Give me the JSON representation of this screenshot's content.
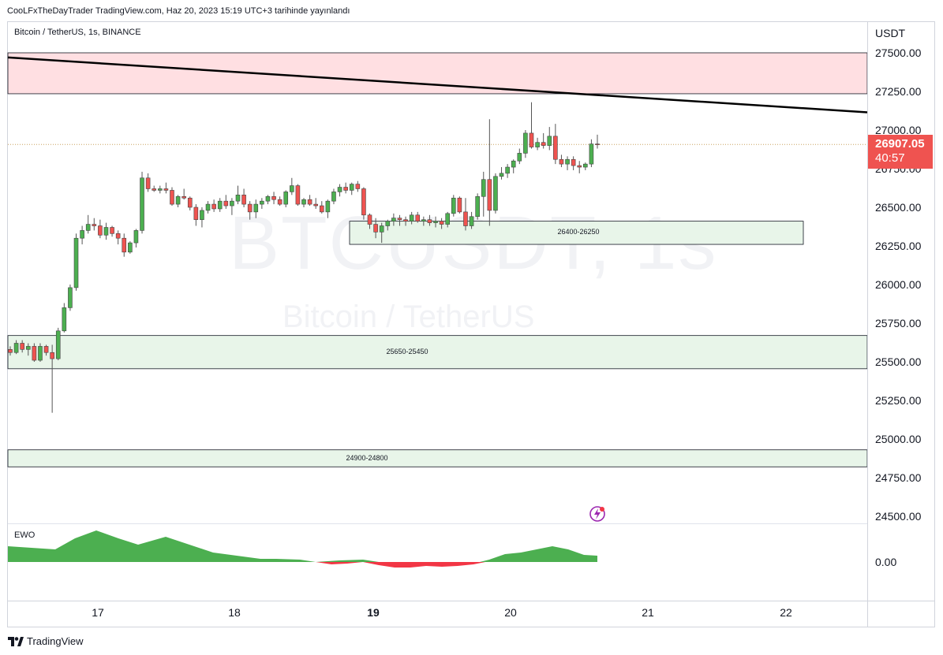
{
  "header": {
    "publisher": "CooLFxTheDayTrader TradingView.com, Haz 20, 2023 15:19 UTC+3 tarihinde yayınlandı",
    "symbol_title": "Bitcoin / TetherUS, 1s, BINANCE"
  },
  "watermark": {
    "symbol": "BTCUSDT, 1s",
    "name": "Bitcoin / TetherUS"
  },
  "price_axis": {
    "currency": "USDT",
    "ticks": [
      "27500.00",
      "27250.00",
      "27000.00",
      "26750.00",
      "26500.00",
      "26250.00",
      "26000.00",
      "25750.00",
      "25500.00",
      "25250.00",
      "25000.00",
      "24750.00",
      "24500.00"
    ],
    "current_price": "26907.05",
    "countdown": "40:57"
  },
  "time_axis": {
    "labels": [
      "17",
      "18",
      "19",
      "20",
      "21",
      "22"
    ],
    "bold_label": "19"
  },
  "zones": [
    {
      "label": "",
      "top": 27500,
      "bottom": 27235,
      "color": "#ffdfe2"
    },
    {
      "label": "26400-26250",
      "top": 26410,
      "bottom": 26260,
      "color": "#e8f5e9"
    },
    {
      "label": "25650-25450",
      "top": 25670,
      "bottom": 25455,
      "color": "#e8f5e9"
    },
    {
      "label": "24900-24800",
      "top": 24930,
      "bottom": 24820,
      "color": "#e8f5e9"
    }
  ],
  "trendline": {
    "from": 27470,
    "to": 27115
  },
  "indicator": {
    "name": "EWO",
    "zero_label": "0.00",
    "colors": {
      "positive": "#4caf50",
      "negative": "#f23645"
    }
  },
  "colors": {
    "up": "#4caf50",
    "down": "#ef5350",
    "label_bg": "#ef5350"
  },
  "footer": {
    "brand": "TradingView"
  },
  "chart_data": {
    "type": "candlestick",
    "title": "Bitcoin / TetherUS, 1s, BINANCE",
    "ylabel": "USDT",
    "ylim": [
      24400,
      27600
    ],
    "x_labels": [
      "17",
      "18",
      "19",
      "20",
      "21",
      "22"
    ],
    "candles": [
      [
        25580,
        25600,
        25540,
        25560
      ],
      [
        25560,
        25640,
        25550,
        25620
      ],
      [
        25620,
        25640,
        25560,
        25580
      ],
      [
        25580,
        25620,
        25540,
        25600
      ],
      [
        25600,
        25620,
        25500,
        25510
      ],
      [
        25510,
        25620,
        25500,
        25600
      ],
      [
        25600,
        25610,
        25540,
        25560
      ],
      [
        25560,
        25610,
        25170,
        25520
      ],
      [
        25520,
        25720,
        25510,
        25700
      ],
      [
        25700,
        25880,
        25690,
        25850
      ],
      [
        25850,
        26000,
        25830,
        25980
      ],
      [
        25980,
        26330,
        25960,
        26300
      ],
      [
        26300,
        26380,
        26260,
        26350
      ],
      [
        26350,
        26450,
        26330,
        26390
      ],
      [
        26390,
        26430,
        26350,
        26380
      ],
      [
        26380,
        26420,
        26300,
        26320
      ],
      [
        26320,
        26400,
        26290,
        26370
      ],
      [
        26370,
        26380,
        26310,
        26330
      ],
      [
        26330,
        26350,
        26260,
        26300
      ],
      [
        26300,
        26330,
        26180,
        26210
      ],
      [
        26210,
        26280,
        26200,
        26270
      ],
      [
        26270,
        26360,
        26240,
        26350
      ],
      [
        26350,
        26730,
        26330,
        26690
      ],
      [
        26690,
        26720,
        26600,
        26620
      ],
      [
        26620,
        26640,
        26600,
        26610
      ],
      [
        26610,
        26640,
        26590,
        26620
      ],
      [
        26620,
        26660,
        26590,
        26610
      ],
      [
        26610,
        26630,
        26510,
        26520
      ],
      [
        26520,
        26580,
        26500,
        26570
      ],
      [
        26570,
        26620,
        26550,
        26560
      ],
      [
        26560,
        26570,
        26480,
        26500
      ],
      [
        26500,
        26520,
        26380,
        26420
      ],
      [
        26420,
        26500,
        26370,
        26480
      ],
      [
        26480,
        26540,
        26460,
        26520
      ],
      [
        26520,
        26550,
        26470,
        26490
      ],
      [
        26490,
        26560,
        26470,
        26540
      ],
      [
        26540,
        26580,
        26490,
        26510
      ],
      [
        26510,
        26560,
        26450,
        26540
      ],
      [
        26540,
        26640,
        26520,
        26580
      ],
      [
        26580,
        26620,
        26500,
        26520
      ],
      [
        26520,
        26540,
        26420,
        26470
      ],
      [
        26470,
        26550,
        26430,
        26520
      ],
      [
        26520,
        26560,
        26490,
        26540
      ],
      [
        26540,
        26580,
        26520,
        26570
      ],
      [
        26570,
        26600,
        26520,
        26550
      ],
      [
        26550,
        26570,
        26510,
        26520
      ],
      [
        26520,
        26610,
        26500,
        26600
      ],
      [
        26600,
        26690,
        26580,
        26640
      ],
      [
        26640,
        26650,
        26510,
        26520
      ],
      [
        26520,
        26560,
        26500,
        26550
      ],
      [
        26550,
        26580,
        26510,
        26520
      ],
      [
        26520,
        26560,
        26490,
        26510
      ],
      [
        26510,
        26540,
        26460,
        26470
      ],
      [
        26470,
        26550,
        26430,
        26540
      ],
      [
        26540,
        26620,
        26520,
        26600
      ],
      [
        26600,
        26650,
        26570,
        26630
      ],
      [
        26630,
        26660,
        26590,
        26610
      ],
      [
        26610,
        26660,
        26580,
        26650
      ],
      [
        26650,
        26670,
        26600,
        26620
      ],
      [
        26620,
        26630,
        26420,
        26450
      ],
      [
        26450,
        26460,
        26360,
        26390
      ],
      [
        26390,
        26430,
        26300,
        26340
      ],
      [
        26340,
        26400,
        26270,
        26380
      ],
      [
        26380,
        26420,
        26350,
        26410
      ],
      [
        26410,
        26460,
        26380,
        26430
      ],
      [
        26430,
        26450,
        26380,
        26420
      ],
      [
        26420,
        26440,
        26380,
        26410
      ],
      [
        26410,
        26470,
        26390,
        26450
      ],
      [
        26450,
        26470,
        26400,
        26410
      ],
      [
        26410,
        26440,
        26380,
        26420
      ],
      [
        26420,
        26450,
        26380,
        26400
      ],
      [
        26400,
        26440,
        26370,
        26410
      ],
      [
        26410,
        26430,
        26360,
        26390
      ],
      [
        26390,
        26470,
        26370,
        26460
      ],
      [
        26460,
        26580,
        26440,
        26560
      ],
      [
        26560,
        26570,
        26460,
        26470
      ],
      [
        26470,
        26560,
        26350,
        26380
      ],
      [
        26380,
        26470,
        26360,
        26440
      ],
      [
        26440,
        26590,
        26420,
        26570
      ],
      [
        26570,
        26730,
        26440,
        26680
      ],
      [
        26680,
        27070,
        26380,
        26480
      ],
      [
        26480,
        26720,
        26460,
        26700
      ],
      [
        26700,
        26760,
        26680,
        26720
      ],
      [
        26720,
        26780,
        26690,
        26760
      ],
      [
        26760,
        26810,
        26720,
        26800
      ],
      [
        26800,
        26880,
        26780,
        26850
      ],
      [
        26850,
        27000,
        26820,
        26980
      ],
      [
        26980,
        27180,
        26880,
        26890
      ],
      [
        26890,
        26950,
        26870,
        26920
      ],
      [
        26920,
        26980,
        26880,
        26900
      ],
      [
        26900,
        27020,
        26870,
        26960
      ],
      [
        26960,
        27040,
        26780,
        26810
      ],
      [
        26810,
        26840,
        26760,
        26780
      ],
      [
        26780,
        26830,
        26740,
        26810
      ],
      [
        26810,
        26830,
        26740,
        26770
      ],
      [
        26770,
        26800,
        26720,
        26760
      ],
      [
        26760,
        26790,
        26740,
        26780
      ],
      [
        26780,
        26940,
        26760,
        26910
      ],
      [
        26910,
        26970,
        26880,
        26907
      ]
    ],
    "annotations": [
      "26400-26250",
      "25650-25450",
      "24900-24800"
    ],
    "current_price": 26907.05
  }
}
